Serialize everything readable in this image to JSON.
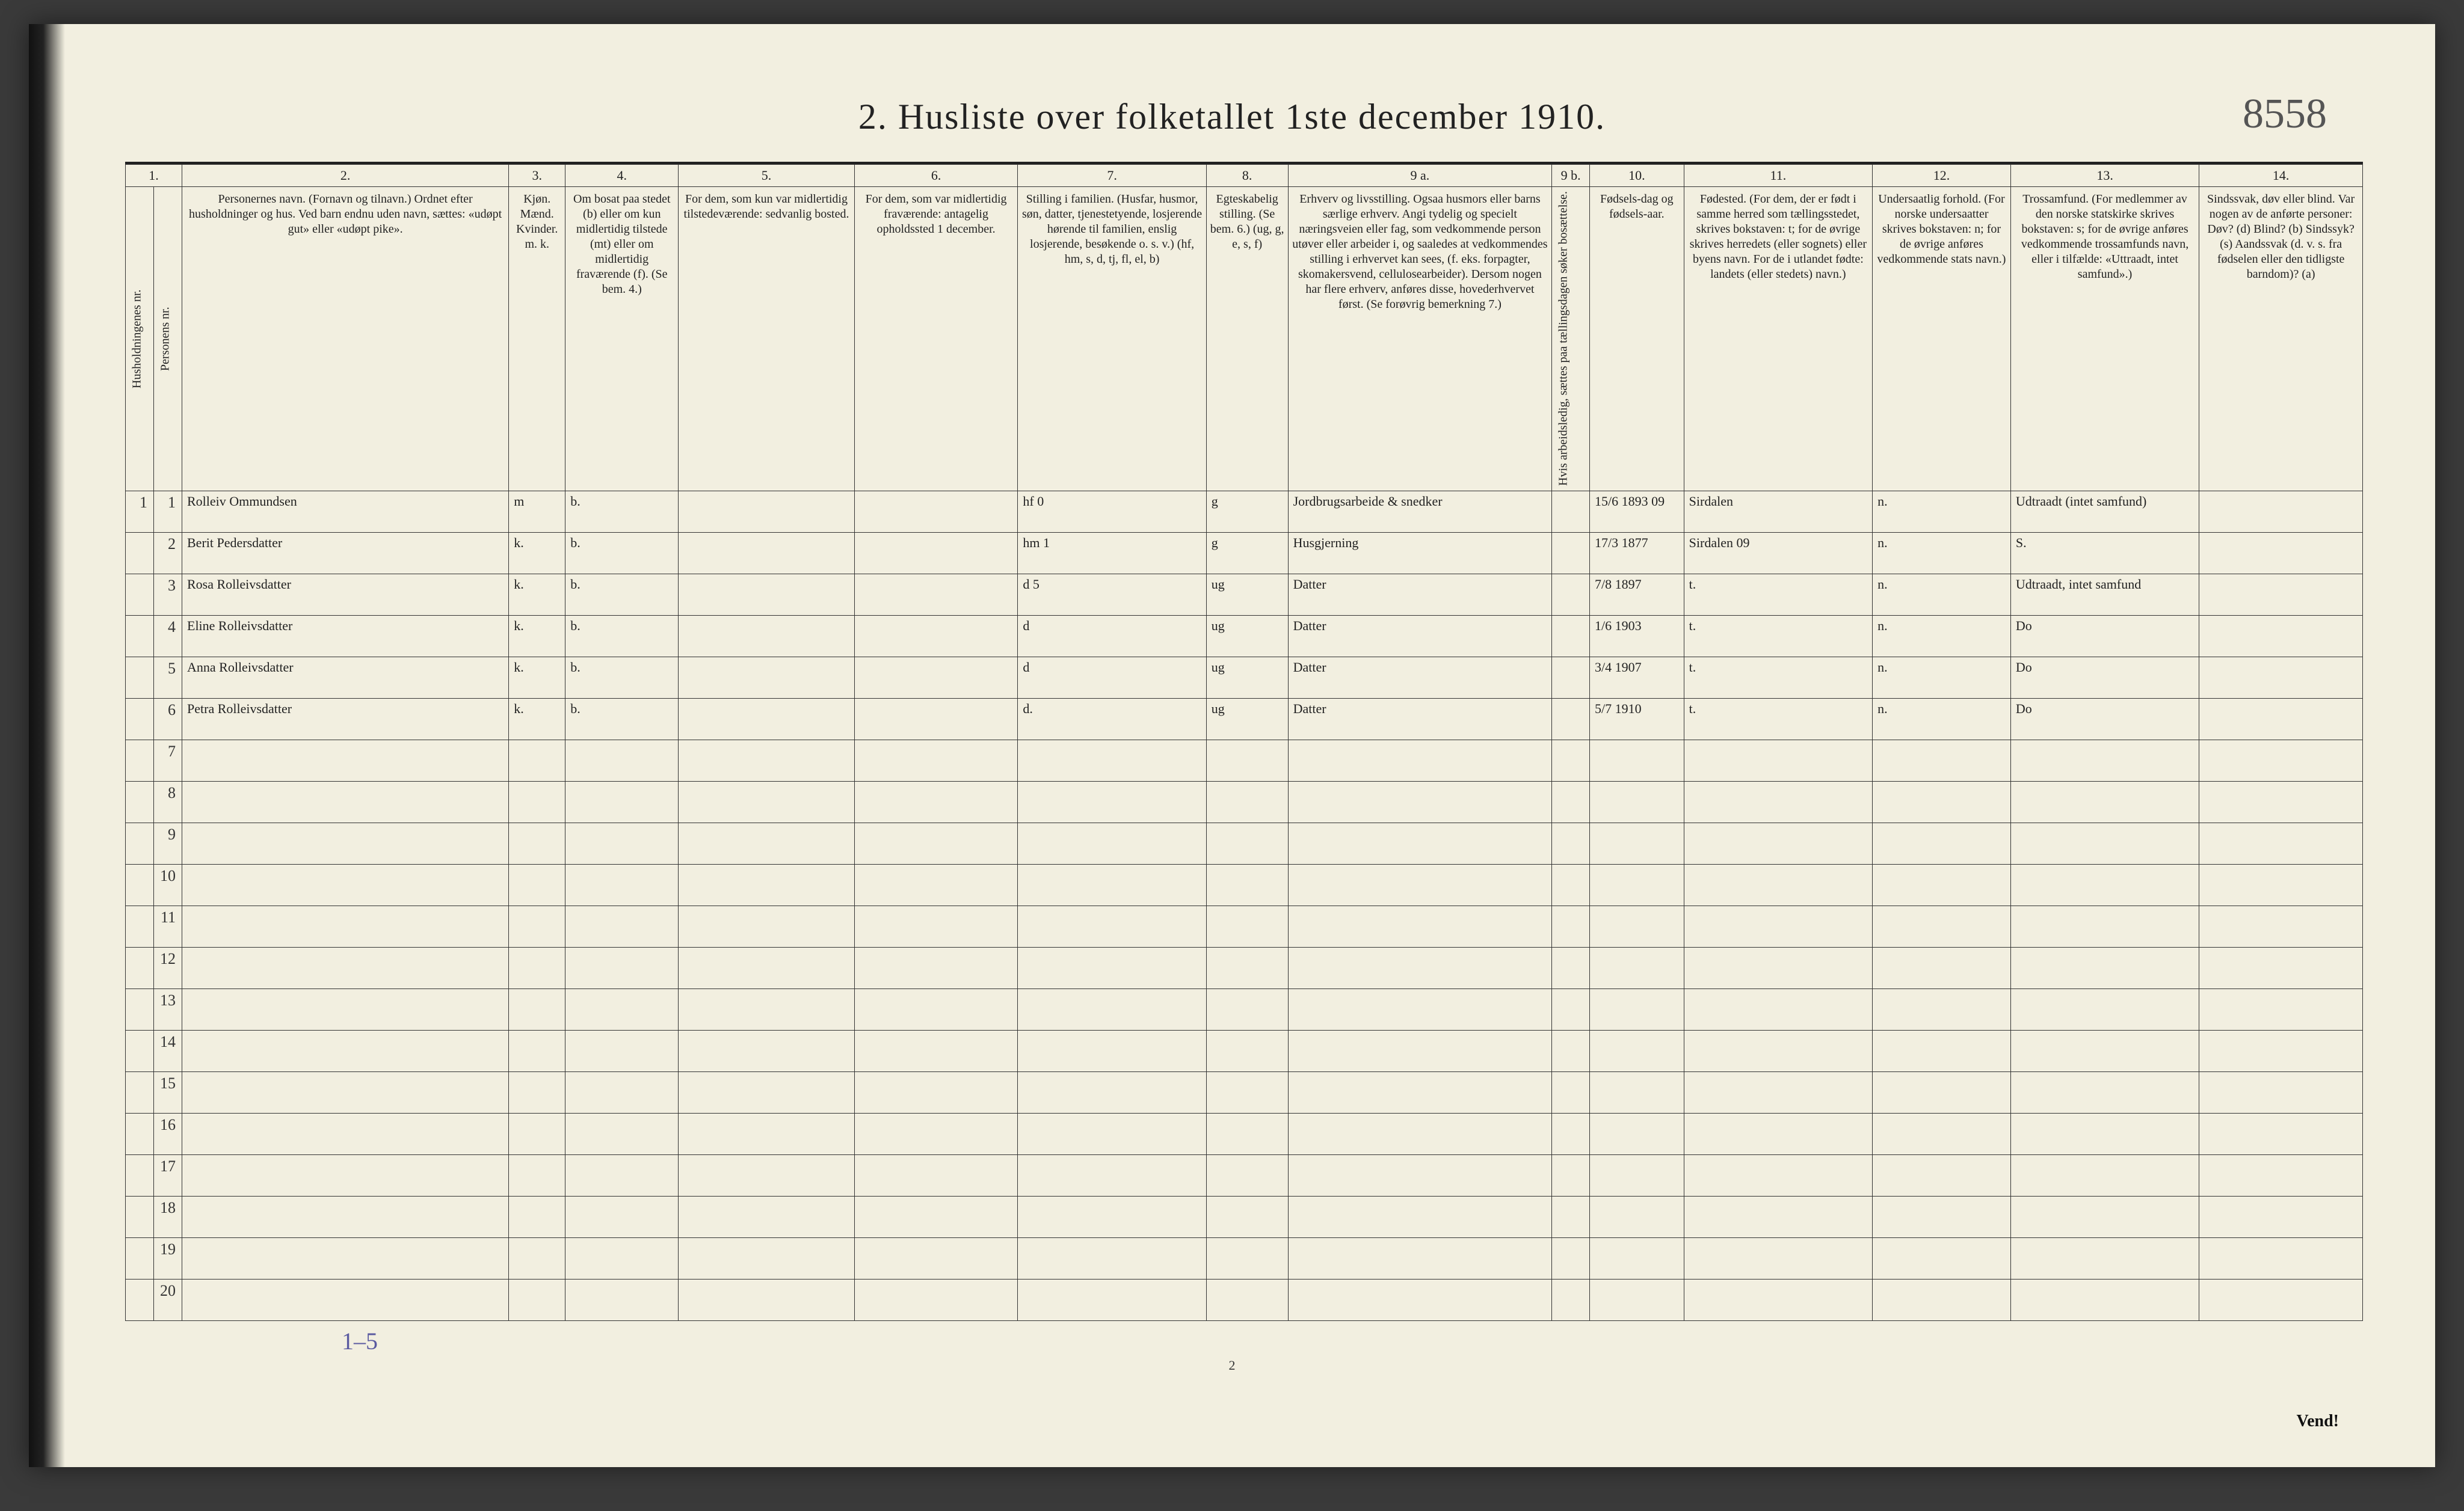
{
  "document": {
    "title": "2.  Husliste over folketallet 1ste december 1910.",
    "reference_number": "8558",
    "page_number_small": "2",
    "turn_over": "Vend!",
    "footer_annotation": "1–5"
  },
  "table": {
    "type": "table",
    "background_color": "#f2efe0",
    "grid_color": "#333333",
    "header_number_row": [
      "1.",
      "2.",
      "3.",
      "4.",
      "5.",
      "6.",
      "7.",
      "8.",
      "9 a.",
      "9 b.",
      "10.",
      "11.",
      "12.",
      "13.",
      "14."
    ],
    "header_labels": {
      "c1a": "Husholdningenes nr.",
      "c1b": "Personens nr.",
      "c2": "Personernes navn.\n(Fornavn og tilnavn.)\nOrdnet efter husholdninger og hus.\nVed barn endnu uden navn, sættes: «udøpt gut» eller «udøpt pike».",
      "c3": "Kjøn.\nMænd. Kvinder.\nm. k.",
      "c4": "Om bosat paa stedet (b) eller om kun midlertidig tilstede (mt) eller om midlertidig fraværende (f).\n(Se bem. 4.)",
      "c5": "For dem, som kun var midlertidig tilstedeværende:\nsedvanlig bosted.",
      "c6": "For dem, som var midlertidig fraværende:\nantagelig opholdssted 1 december.",
      "c7": "Stilling i familien.\n(Husfar, husmor, søn, datter, tjenestetyende, losjerende hørende til familien, enslig losjerende, besøkende o. s. v.)\n(hf, hm, s, d, tj, fl, el, b)",
      "c8": "Egteskabelig stilling.\n(Se bem. 6.)\n(ug, g, e, s, f)",
      "c9a": "Erhverv og livsstilling.\nOgsaa husmors eller barns særlige erhverv. Angi tydelig og specielt næringsveien eller fag, som vedkommende person utøver eller arbeider i, og saaledes at vedkommendes stilling i erhvervet kan sees, (f. eks. forpagter, skomakersvend, cellulosearbeider). Dersom nogen har flere erhverv, anføres disse, hovederhvervet først.\n(Se forøvrig bemerkning 7.)",
      "c9b": "Hvis arbeidsledig, sættes paa tællingsdagen søker bosættelse.",
      "c10": "Fødsels-dag og fødsels-aar.",
      "c11": "Fødested.\n(For dem, der er født i samme herred som tællingsstedet, skrives bokstaven: t; for de øvrige skrives herredets (eller sognets) eller byens navn. For de i utlandet fødte: landets (eller stedets) navn.)",
      "c12": "Undersaatlig forhold.\n(For norske undersaatter skrives bokstaven: n; for de øvrige anføres vedkommende stats navn.)",
      "c13": "Trossamfund.\n(For medlemmer av den norske statskirke skrives bokstaven: s; for de øvrige anføres vedkommende trossamfunds navn, eller i tilfælde: «Uttraadt, intet samfund».)",
      "c14": "Sindssvak, døv eller blind.\nVar nogen av de anførte personer:\nDøv? (d)\nBlind? (b)\nSindssyk? (s)\nAandssvak (d. v. s. fra fødselen eller den tidligste barndom)? (a)"
    },
    "rows": [
      {
        "hh": "1",
        "pn": "1",
        "name": "Rolleiv Ommundsen",
        "sex": "m",
        "res": "b.",
        "famrel": "hf      0",
        "marital": "g",
        "occupation": "Jordbrugsarbeide & snedker",
        "birth": "15/6 1893  09",
        "birthplace": "Sirdalen",
        "citizen": "n.",
        "faith": "Udtraadt (intet samfund)"
      },
      {
        "hh": "",
        "pn": "2",
        "name": "Berit Pedersdatter",
        "sex": "k.",
        "res": "b.",
        "famrel": "hm      1",
        "marital": "g",
        "occupation": "Husgjerning",
        "birth": "17/3 1877",
        "birthplace": "Sirdalen 09",
        "citizen": "n.",
        "faith": "S."
      },
      {
        "hh": "",
        "pn": "3",
        "name": "Rosa Rolleivsdatter",
        "sex": "k.",
        "res": "b.",
        "famrel": "d       5",
        "marital": "ug",
        "occupation": "Datter",
        "birth": "7/8 1897",
        "birthplace": "t.",
        "citizen": "n.",
        "faith": "Udtraadt, intet samfund"
      },
      {
        "hh": "",
        "pn": "4",
        "name": "Eline Rolleivsdatter",
        "sex": "k.",
        "res": "b.",
        "famrel": "d",
        "marital": "ug",
        "occupation": "Datter",
        "birth": "1/6 1903",
        "birthplace": "t.",
        "citizen": "n.",
        "faith": "Do"
      },
      {
        "hh": "",
        "pn": "5",
        "name": "Anna Rolleivsdatter",
        "sex": "k.",
        "res": "b.",
        "famrel": "d",
        "marital": "ug",
        "occupation": "Datter",
        "birth": "3/4 1907",
        "birthplace": "t.",
        "citizen": "n.",
        "faith": "Do"
      },
      {
        "hh": "",
        "pn": "6",
        "name": "Petra Rolleivsdatter",
        "sex": "k.",
        "res": "b.",
        "famrel": "d.",
        "marital": "ug",
        "occupation": "Datter",
        "birth": "5/7 1910",
        "birthplace": "t.",
        "citizen": "n.",
        "faith": "Do"
      }
    ],
    "empty_row_numbers": [
      "7",
      "8",
      "9",
      "10",
      "11",
      "12",
      "13",
      "14",
      "15",
      "16",
      "17",
      "18",
      "19",
      "20"
    ]
  }
}
